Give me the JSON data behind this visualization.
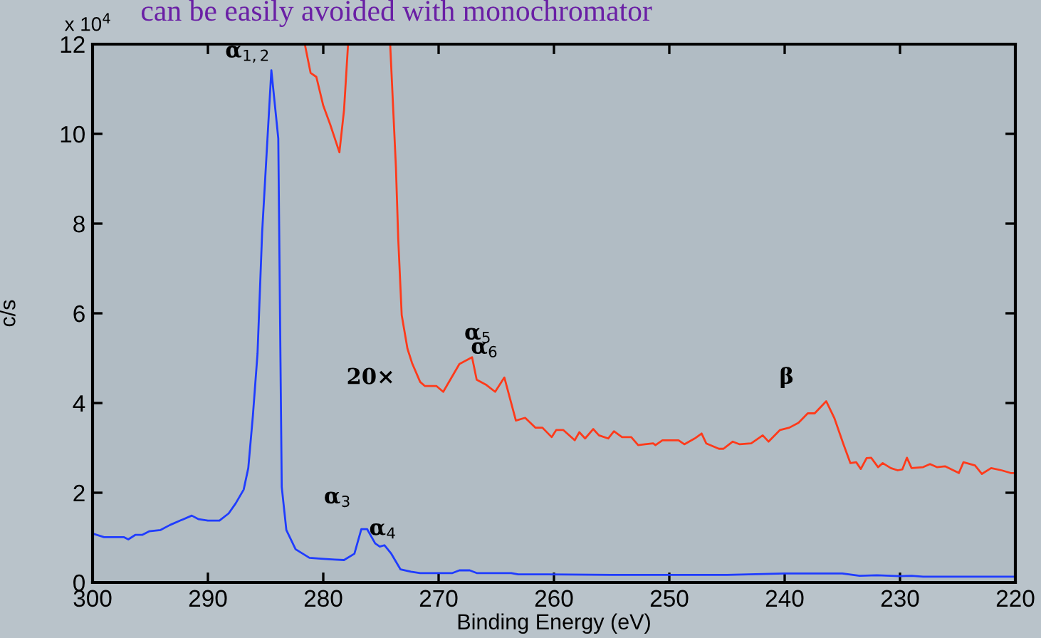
{
  "chart_data": {
    "type": "line",
    "xlabel": "Binding Energy (eV)",
    "ylabel": "c/s",
    "xlim": [
      300,
      220
    ],
    "xticks": [
      300,
      290,
      280,
      270,
      260,
      250,
      240,
      230,
      220
    ],
    "ylim": [
      0,
      12
    ],
    "yticks": [
      0,
      2,
      4,
      6,
      8,
      10,
      12
    ],
    "grid": false,
    "legend": false,
    "marker": "none",
    "line_style": "solid",
    "series": [
      {
        "color": "#1f3cff",
        "x": [
          300,
          299,
          297.3,
          296.9,
          296.3,
          295.7,
          295.1,
          294.1,
          293.3,
          292.4,
          291.4,
          290.8,
          290.0,
          289.0,
          288.2,
          287.6,
          286.9,
          286.5,
          286.1,
          285.7,
          285.3,
          284.5,
          283.9,
          283.6,
          283.2,
          282.4,
          281.2,
          280.2,
          279.0,
          278.2,
          277.3,
          276.7,
          276.2,
          275.5,
          275.1,
          274.7,
          274.1,
          273.3,
          272.4,
          271.6,
          268.8,
          268.2,
          267.3,
          266.7,
          263.7,
          263.1,
          260.6,
          255,
          250,
          245,
          240,
          235,
          233.5,
          232,
          230,
          229,
          228,
          220
        ],
        "values": [
          1.09,
          1.01,
          1.01,
          0.96,
          1.06,
          1.06,
          1.14,
          1.17,
          1.28,
          1.38,
          1.49,
          1.41,
          1.38,
          1.38,
          1.54,
          1.76,
          2.07,
          2.55,
          3.72,
          5.1,
          7.8,
          11.42,
          9.9,
          2.13,
          1.17,
          0.74,
          0.55,
          0.53,
          0.51,
          0.5,
          0.64,
          1.19,
          1.19,
          0.87,
          0.8,
          0.83,
          0.64,
          0.29,
          0.24,
          0.21,
          0.21,
          0.27,
          0.27,
          0.21,
          0.21,
          0.18,
          0.18,
          0.17,
          0.17,
          0.17,
          0.2,
          0.2,
          0.15,
          0.16,
          0.14,
          0.15,
          0.13,
          0.13
        ]
      },
      {
        "color": "#ff3a1a",
        "x": [
          281.6,
          281.1,
          280.6,
          280.0,
          279.4,
          278.6,
          278.2,
          277.85,
          276.0,
          274.2,
          273.7,
          273.5,
          273.2,
          272.7,
          272.3,
          271.6,
          271.2,
          270.2,
          269.6,
          268.2,
          267.1,
          266.7,
          265.9,
          265.1,
          264.3,
          263.3,
          262.5,
          261.6,
          261.0,
          260.2,
          259.8,
          259.2,
          258.2,
          257.8,
          257.3,
          256.6,
          256.1,
          255.3,
          254.8,
          254.1,
          253.3,
          252.7,
          252.1,
          251.4,
          251.2,
          250.6,
          249.2,
          248.7,
          247.8,
          247.2,
          246.8,
          245.7,
          245.3,
          244.5,
          243.9,
          242.9,
          241.9,
          241.4,
          240.4,
          239.6,
          238.8,
          238.0,
          237.4,
          236.4,
          235.7,
          234.9,
          234.3,
          233.8,
          233.4,
          232.9,
          232.5,
          231.9,
          231.5,
          230.8,
          230.2,
          229.8,
          229.4,
          229.0,
          228.0,
          227.4,
          226.8,
          226.1,
          224.9,
          224.5,
          223.5,
          222.9,
          222.1,
          221.2,
          220.4,
          220
        ],
        "values": [
          12,
          11.36,
          11.27,
          10.63,
          10.21,
          9.59,
          10.53,
          12,
          null,
          12,
          9.25,
          7.66,
          5.96,
          5.21,
          4.89,
          4.47,
          4.38,
          4.38,
          4.25,
          4.87,
          5.02,
          4.52,
          4.41,
          4.25,
          4.57,
          3.61,
          3.67,
          3.45,
          3.45,
          3.24,
          3.4,
          3.4,
          3.17,
          3.35,
          3.21,
          3.42,
          3.28,
          3.21,
          3.37,
          3.24,
          3.24,
          3.06,
          3.08,
          3.1,
          3.06,
          3.17,
          3.17,
          3.08,
          3.21,
          3.32,
          3.1,
          2.98,
          2.98,
          3.14,
          3.08,
          3.1,
          3.28,
          3.14,
          3.4,
          3.45,
          3.56,
          3.77,
          3.77,
          4.04,
          3.67,
          3.08,
          2.66,
          2.68,
          2.53,
          2.77,
          2.78,
          2.57,
          2.66,
          2.55,
          2.5,
          2.52,
          2.78,
          2.55,
          2.57,
          2.64,
          2.57,
          2.59,
          2.44,
          2.68,
          2.61,
          2.42,
          2.55,
          2.5,
          2.44,
          2.44
        ]
      }
    ],
    "annotations": [
      "can be easily avoided with monochromator",
      "x 10$^{4}$",
      {
        "text": "α$_{1,2}$",
        "x": 284.5,
        "y": 11.42
      },
      {
        "text": "α$_{3}$",
        "x": 276.7,
        "y": 1.19
      },
      {
        "text": "α$_{4}$",
        "x": 276.2,
        "y": 1.19
      },
      {
        "text": "20×",
        "x": 271.6,
        "y": 4.47
      },
      {
        "text": "α$_{5}$",
        "x": 267.1,
        "y": 5.02
      },
      {
        "text": "α$_{6}$",
        "x": 264.3,
        "y": 4.57
      },
      {
        "text": "β",
        "x": 236.4,
        "y": 4.04
      }
    ]
  }
}
